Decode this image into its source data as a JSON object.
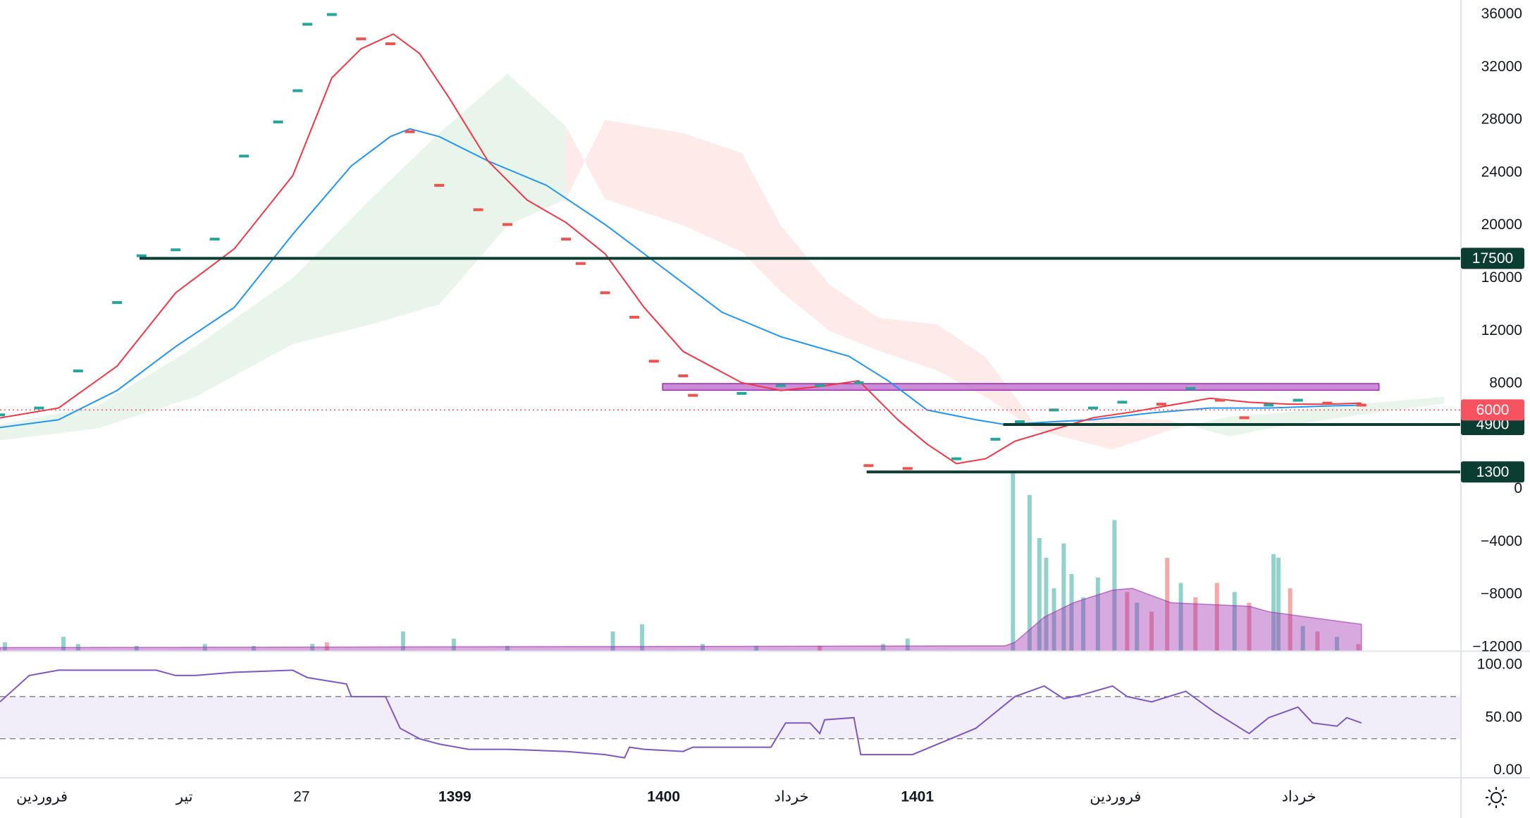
{
  "chart_data": {
    "type": "line",
    "xlim": [
      0,
      1497
    ],
    "ylim": [
      -12300,
      37100
    ],
    "xticks": [
      {
        "value": 43,
        "label": "فروردین"
      },
      {
        "value": 189,
        "label": "تیر"
      },
      {
        "value": 309,
        "label": "27"
      },
      {
        "value": 466,
        "label": "1399"
      },
      {
        "value": 680,
        "label": "1400"
      },
      {
        "value": 811,
        "label": "خرداد"
      },
      {
        "value": 940,
        "label": "1401"
      },
      {
        "value": 1143,
        "label": "فروردین"
      },
      {
        "value": 1331,
        "label": "خرداد"
      }
    ],
    "yticks": [
      36000,
      32000,
      28000,
      24000,
      20000,
      16000,
      12000,
      8000,
      0,
      {
        "value": -4000,
        "label": "−4000"
      },
      {
        "value": -8000,
        "label": "−8000"
      },
      {
        "value": -12000,
        "label": "−12000"
      }
    ],
    "grid": false,
    "price": {
      "up_color": "#26a69a",
      "down_color": "#ef5350",
      "x": [
        0,
        40,
        80,
        120,
        145,
        180,
        220,
        250,
        285,
        305,
        315,
        340,
        370,
        400,
        420,
        450,
        490,
        520,
        580,
        595,
        620,
        650,
        670,
        700,
        710,
        760,
        800,
        840,
        880,
        890,
        930,
        980,
        1020,
        1045,
        1080,
        1120,
        1150,
        1190,
        1220,
        1250,
        1275,
        1300,
        1330,
        1360,
        1395
      ],
      "values": [
        5630,
        6150,
        8960,
        14150,
        17700,
        18150,
        18960,
        25260,
        27850,
        30220,
        35260,
        36000,
        34150,
        33780,
        27110,
        23040,
        21190,
        20070,
        18960,
        17110,
        14890,
        13040,
        9700,
        8590,
        7110,
        7260,
        7850,
        7850,
        8070,
        1780,
        1560,
        2300,
        3780,
        5110,
        6000,
        6150,
        6590,
        6440,
        7630,
        6740,
        5410,
        6370,
        6740,
        6520,
        6370
      ]
    },
    "ma_fast": {
      "color": "#f23645",
      "x": [
        0,
        60,
        120,
        180,
        240,
        300,
        340,
        370,
        403,
        430,
        460,
        500,
        540,
        580,
        620,
        660,
        700,
        760,
        800,
        840,
        880,
        920,
        950,
        980,
        1010,
        1040,
        1080,
        1120,
        1160,
        1200,
        1240,
        1280,
        1320,
        1360,
        1395
      ],
      "values": [
        5400,
        6150,
        9330,
        14890,
        18220,
        23780,
        31190,
        33400,
        34520,
        33040,
        29700,
        24890,
        21930,
        20220,
        17850,
        13780,
        10440,
        8070,
        7480,
        7780,
        8220,
        5260,
        3410,
        1930,
        2300,
        3630,
        4520,
        5410,
        5850,
        6370,
        6890,
        6590,
        6440,
        6440,
        6520
      ]
    },
    "ma_slow": {
      "color": "#2196f3",
      "x": [
        0,
        60,
        120,
        180,
        240,
        300,
        360,
        400,
        420,
        450,
        500,
        560,
        620,
        680,
        740,
        800,
        870,
        910,
        950,
        1000,
        1030,
        1080,
        1120,
        1180,
        1240,
        1300,
        1360,
        1395
      ],
      "values": [
        4670,
        5260,
        7480,
        10810,
        13780,
        19330,
        24520,
        26740,
        27330,
        26740,
        24890,
        23040,
        20070,
        16740,
        13410,
        11560,
        10070,
        8220,
        6000,
        5260,
        4890,
        5110,
        5260,
        5780,
        6150,
        6150,
        6300,
        6370
      ]
    },
    "cloud": {
      "up_color": "rgba(76,175,80,0.12)",
      "down_color": "rgba(255,82,82,0.12)",
      "x": [
        0,
        100,
        200,
        300,
        380,
        450,
        520,
        580,
        620,
        700,
        760,
        800,
        850,
        900,
        960,
        1010,
        1060,
        1140,
        1200,
        1260,
        1300,
        1400,
        1480
      ],
      "span_a": [
        4900,
        6300,
        10800,
        16000,
        22000,
        27000,
        31500,
        27500,
        22000,
        20000,
        18000,
        15000,
        12000,
        10500,
        9000,
        7000,
        4500,
        3000,
        4500,
        5500,
        5700,
        6500,
        7000
      ],
      "span_b": [
        3700,
        4600,
        7000,
        11000,
        12500,
        14000,
        20000,
        22000,
        28000,
        27000,
        25500,
        20000,
        15500,
        13000,
        12500,
        10000,
        5000,
        5500,
        5200,
        4000,
        4600,
        5700,
        6500
      ]
    },
    "volume": {
      "vlim": [
        0,
        100
      ],
      "up_color": "rgba(38,166,154,0.5)",
      "down_color": "rgba(239,83,80,0.5)",
      "x": [
        5,
        65,
        80,
        140,
        210,
        260,
        320,
        335,
        413,
        465,
        520,
        628,
        658,
        720,
        775,
        840,
        905,
        930,
        1038,
        1055,
        1065,
        1072,
        1080,
        1090,
        1098,
        1110,
        1125,
        1142,
        1155,
        1165,
        1180,
        1196,
        1210,
        1225,
        1247,
        1265,
        1280,
        1305,
        1310,
        1322,
        1335,
        1350,
        1370,
        1392
      ],
      "values": [
        5,
        8,
        4,
        3,
        4,
        3,
        4,
        5,
        11,
        7,
        3,
        11,
        15,
        4,
        3,
        3,
        4,
        7,
        99,
        87,
        63,
        52,
        35,
        60,
        43,
        30,
        41,
        73,
        33,
        27,
        22,
        52,
        38,
        30,
        38,
        33,
        27,
        54,
        52,
        35,
        14,
        11,
        8,
        4
      ],
      "up": [
        true,
        true,
        true,
        true,
        true,
        true,
        true,
        false,
        true,
        true,
        true,
        true,
        true,
        true,
        true,
        false,
        true,
        true,
        true,
        true,
        true,
        true,
        true,
        true,
        true,
        true,
        true,
        true,
        false,
        true,
        false,
        false,
        true,
        false,
        false,
        true,
        false,
        true,
        true,
        false,
        true,
        false,
        true,
        false
      ]
    },
    "volume_ma": {
      "color": "rgba(156,39,176,0.4)",
      "x": [
        0,
        1030,
        1040,
        1070,
        1100,
        1140,
        1160,
        1200,
        1240,
        1280,
        1300,
        1340,
        1395
      ],
      "values": [
        2,
        3,
        5,
        19,
        27,
        34,
        35,
        27,
        26,
        25,
        22,
        19,
        15
      ]
    },
    "levels": [
      {
        "value": 17500,
        "start": 143
      },
      {
        "value": 4900,
        "start": 1028
      },
      {
        "value": 1300,
        "start": 888
      }
    ],
    "level_color": "#0b3d33",
    "last_price": {
      "value": 6000,
      "color": "#f7525f"
    },
    "zone": {
      "from": 7500,
      "to": 8000,
      "start": 679,
      "end": 1413,
      "color": "rgba(186,104,200,0.75)"
    },
    "rsi": {
      "color": "#7e57c2",
      "ylim": [
        -7,
        113
      ],
      "yticks": [
        {
          "value": 100,
          "label": "100.00"
        },
        {
          "value": 50,
          "label": "50.00"
        },
        {
          "value": 0,
          "label": "0.00"
        }
      ],
      "band": [
        30,
        70
      ],
      "x": [
        0,
        30,
        60,
        160,
        180,
        200,
        240,
        300,
        315,
        355,
        360,
        395,
        410,
        430,
        450,
        480,
        520,
        580,
        620,
        640,
        645,
        660,
        700,
        710,
        790,
        805,
        830,
        840,
        845,
        875,
        882,
        935,
        1000,
        1040,
        1070,
        1090,
        1110,
        1140,
        1155,
        1180,
        1215,
        1245,
        1280,
        1300,
        1330,
        1345,
        1370,
        1380,
        1395
      ],
      "values": [
        65,
        90,
        95,
        95,
        90,
        90,
        93,
        95,
        88,
        82,
        70,
        70,
        40,
        30,
        25,
        20,
        20,
        18,
        15,
        12,
        22,
        20,
        18,
        22,
        22,
        45,
        45,
        35,
        48,
        50,
        15,
        15,
        40,
        70,
        80,
        68,
        72,
        80,
        70,
        65,
        75,
        55,
        35,
        50,
        60,
        45,
        42,
        50,
        45
      ]
    }
  }
}
